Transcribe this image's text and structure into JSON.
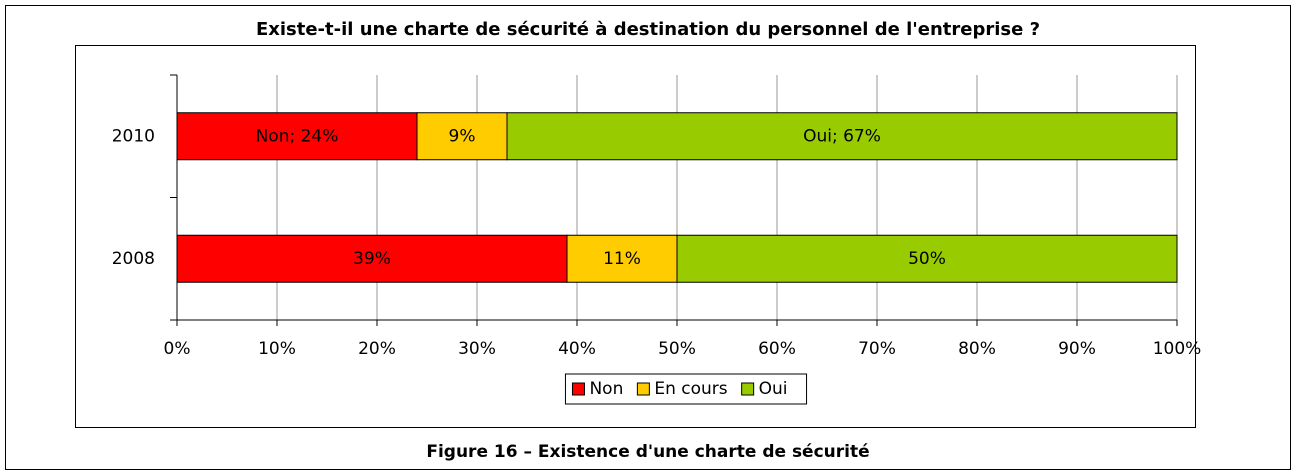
{
  "chart_data": {
    "type": "stacked-bar-horizontal",
    "title": "Existe-t-il une charte de sécurité à destination du personnel de l'entreprise ?",
    "caption": "Figure 16 – Existence d'une charte de sécurité",
    "categories": [
      "2010",
      "2008"
    ],
    "series": [
      {
        "name": "Non",
        "color": "#ff0000",
        "values": [
          24,
          39
        ],
        "value_labels": [
          "Non; 24%",
          "39%"
        ]
      },
      {
        "name": "En cours",
        "color": "#ffcc00",
        "values": [
          9,
          11
        ],
        "value_labels": [
          "9%",
          "11%"
        ]
      },
      {
        "name": "Oui",
        "color": "#99cc00",
        "values": [
          67,
          50
        ],
        "value_labels": [
          "Oui; 67%",
          "50%"
        ]
      }
    ],
    "xlim": [
      0,
      100
    ],
    "xticks": [
      {
        "value": 0,
        "label": "0%"
      },
      {
        "value": 10,
        "label": "10%"
      },
      {
        "value": 20,
        "label": "20%"
      },
      {
        "value": 30,
        "label": "30%"
      },
      {
        "value": 40,
        "label": "40%"
      },
      {
        "value": 50,
        "label": "50%"
      },
      {
        "value": 60,
        "label": "60%"
      },
      {
        "value": 70,
        "label": "70%"
      },
      {
        "value": 80,
        "label": "80%"
      },
      {
        "value": 90,
        "label": "90%"
      },
      {
        "value": 100,
        "label": "100%"
      }
    ],
    "grid": true,
    "legend": "bottom"
  }
}
